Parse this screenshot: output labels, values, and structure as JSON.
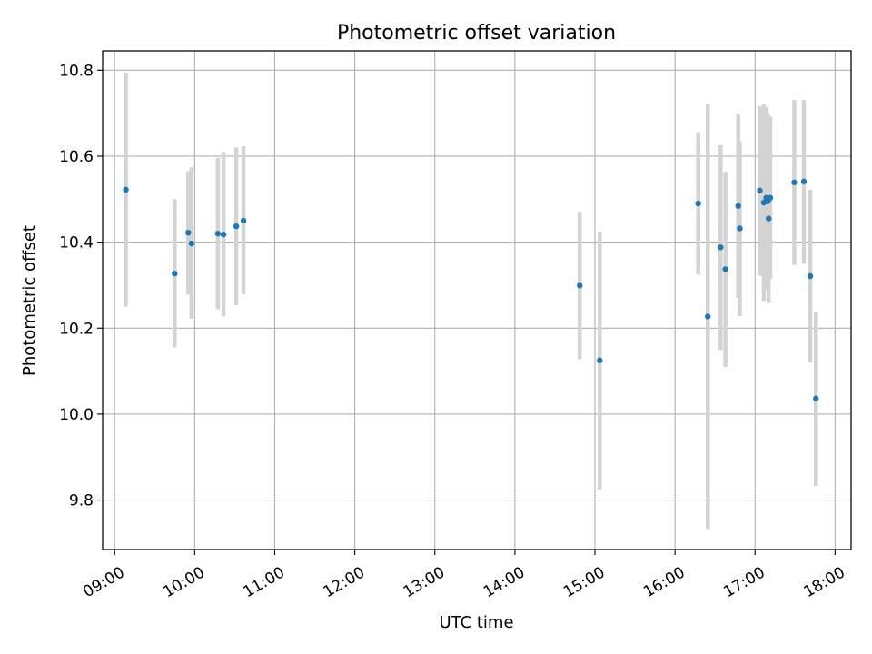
{
  "chart_data": {
    "type": "scatter",
    "title": "Photometric offset variation",
    "xlabel": "UTC time",
    "ylabel": "Photometric offset",
    "x_unit": "hour",
    "xlim": [
      8.85,
      18.2
    ],
    "ylim": [
      9.685,
      10.845
    ],
    "x_ticks": [
      {
        "value": 9,
        "label": "09:00"
      },
      {
        "value": 10,
        "label": "10:00"
      },
      {
        "value": 11,
        "label": "11:00"
      },
      {
        "value": 12,
        "label": "12:00"
      },
      {
        "value": 13,
        "label": "13:00"
      },
      {
        "value": 14,
        "label": "14:00"
      },
      {
        "value": 15,
        "label": "15:00"
      },
      {
        "value": 16,
        "label": "16:00"
      },
      {
        "value": 17,
        "label": "17:00"
      },
      {
        "value": 18,
        "label": "18:00"
      }
    ],
    "y_ticks": [
      {
        "value": 9.8,
        "label": "9.8"
      },
      {
        "value": 10.0,
        "label": "10.0"
      },
      {
        "value": 10.2,
        "label": "10.2"
      },
      {
        "value": 10.4,
        "label": "10.4"
      },
      {
        "value": 10.6,
        "label": "10.6"
      },
      {
        "value": 10.8,
        "label": "10.8"
      }
    ],
    "grid": true,
    "colors": {
      "point": "#1f77b4",
      "errorbar": "#d3d3d3",
      "grid": "#b0b0b0"
    },
    "points": [
      {
        "x": 9.14,
        "y": 10.522,
        "low": 10.25,
        "high": 10.795
      },
      {
        "x": 9.75,
        "y": 10.327,
        "low": 10.155,
        "high": 10.5
      },
      {
        "x": 9.92,
        "y": 10.422,
        "low": 10.278,
        "high": 10.565
      },
      {
        "x": 9.96,
        "y": 10.397,
        "low": 10.222,
        "high": 10.574
      },
      {
        "x": 10.29,
        "y": 10.42,
        "low": 10.244,
        "high": 10.596
      },
      {
        "x": 10.36,
        "y": 10.418,
        "low": 10.227,
        "high": 10.61
      },
      {
        "x": 10.52,
        "y": 10.437,
        "low": 10.253,
        "high": 10.62
      },
      {
        "x": 10.61,
        "y": 10.45,
        "low": 10.279,
        "high": 10.623
      },
      {
        "x": 14.81,
        "y": 10.299,
        "low": 10.128,
        "high": 10.471
      },
      {
        "x": 15.06,
        "y": 10.125,
        "low": 9.825,
        "high": 10.425
      },
      {
        "x": 16.29,
        "y": 10.49,
        "low": 10.325,
        "high": 10.655
      },
      {
        "x": 16.41,
        "y": 10.227,
        "low": 9.733,
        "high": 10.721
      },
      {
        "x": 16.57,
        "y": 10.388,
        "low": 10.149,
        "high": 10.626
      },
      {
        "x": 16.63,
        "y": 10.337,
        "low": 10.11,
        "high": 10.564
      },
      {
        "x": 16.79,
        "y": 10.484,
        "low": 10.27,
        "high": 10.697
      },
      {
        "x": 16.81,
        "y": 10.432,
        "low": 10.228,
        "high": 10.635
      },
      {
        "x": 17.06,
        "y": 10.52,
        "low": 10.322,
        "high": 10.716
      },
      {
        "x": 17.11,
        "y": 10.492,
        "low": 10.263,
        "high": 10.721
      },
      {
        "x": 17.14,
        "y": 10.503,
        "low": 10.292,
        "high": 10.714
      },
      {
        "x": 17.16,
        "y": 10.495,
        "low": 10.29,
        "high": 10.7
      },
      {
        "x": 17.19,
        "y": 10.503,
        "low": 10.315,
        "high": 10.692
      },
      {
        "x": 17.17,
        "y": 10.455,
        "low": 10.258,
        "high": 10.652
      },
      {
        "x": 17.49,
        "y": 10.539,
        "low": 10.347,
        "high": 10.731
      },
      {
        "x": 17.61,
        "y": 10.541,
        "low": 10.35,
        "high": 10.731
      },
      {
        "x": 17.69,
        "y": 10.321,
        "low": 10.12,
        "high": 10.522
      },
      {
        "x": 17.76,
        "y": 10.036,
        "low": 9.833,
        "high": 10.238
      }
    ]
  }
}
